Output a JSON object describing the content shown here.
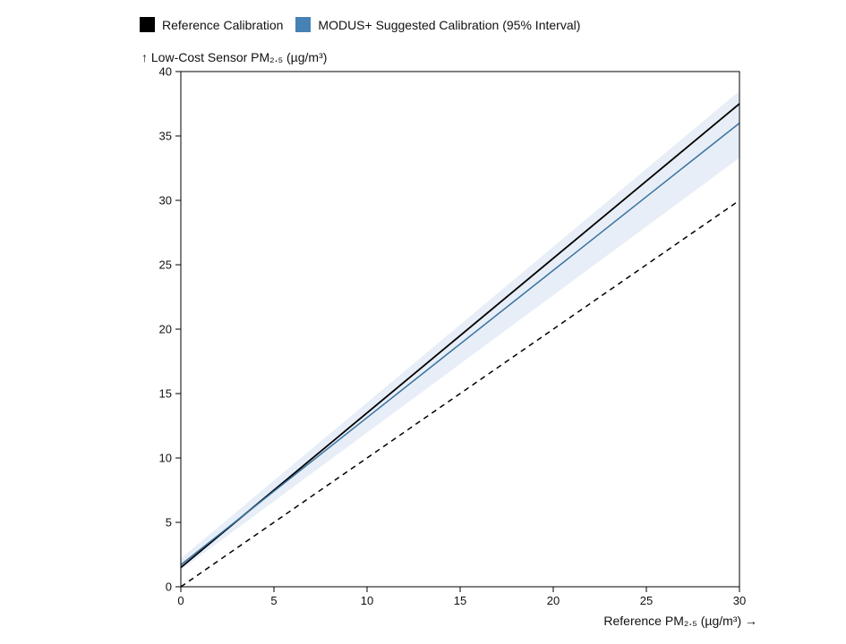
{
  "chart_data": {
    "type": "line",
    "ylabel": "↑ Low-Cost Sensor PM₂.₅ (µg/m³)",
    "xlabel": "Reference PM₂.₅ (µg/m³) →",
    "xlim": [
      0,
      30
    ],
    "ylim": [
      0,
      40
    ],
    "x_ticks": [
      0,
      5,
      10,
      15,
      20,
      25,
      30
    ],
    "y_ticks": [
      0,
      5,
      10,
      15,
      20,
      25,
      30,
      35,
      40
    ],
    "grid": false,
    "legend_position": "top-left",
    "legend": [
      {
        "label": "Reference Calibration",
        "color": "#000000"
      },
      {
        "label": "MODUS+ Suggested Calibration (95% Interval)",
        "color": "#4682b4"
      }
    ],
    "series": [
      {
        "name": "Reference Calibration",
        "color": "#000000",
        "style": "solid",
        "x": [
          0,
          30
        ],
        "y": [
          1.5,
          37.5
        ]
      },
      {
        "name": "MODUS+ Suggested Calibration (95% Interval)",
        "color": "#3a73a0",
        "style": "solid",
        "x": [
          0,
          30
        ],
        "y": [
          1.7,
          36.0
        ]
      },
      {
        "name": "",
        "color": "#000000",
        "style": "dashed",
        "x": [
          0,
          30
        ],
        "y": [
          0,
          30
        ]
      }
    ],
    "interval": {
      "color": "#e8eef7",
      "x": [
        0,
        30
      ],
      "lower": [
        1.3,
        33.3
      ],
      "upper": [
        2.2,
        38.5
      ]
    }
  }
}
